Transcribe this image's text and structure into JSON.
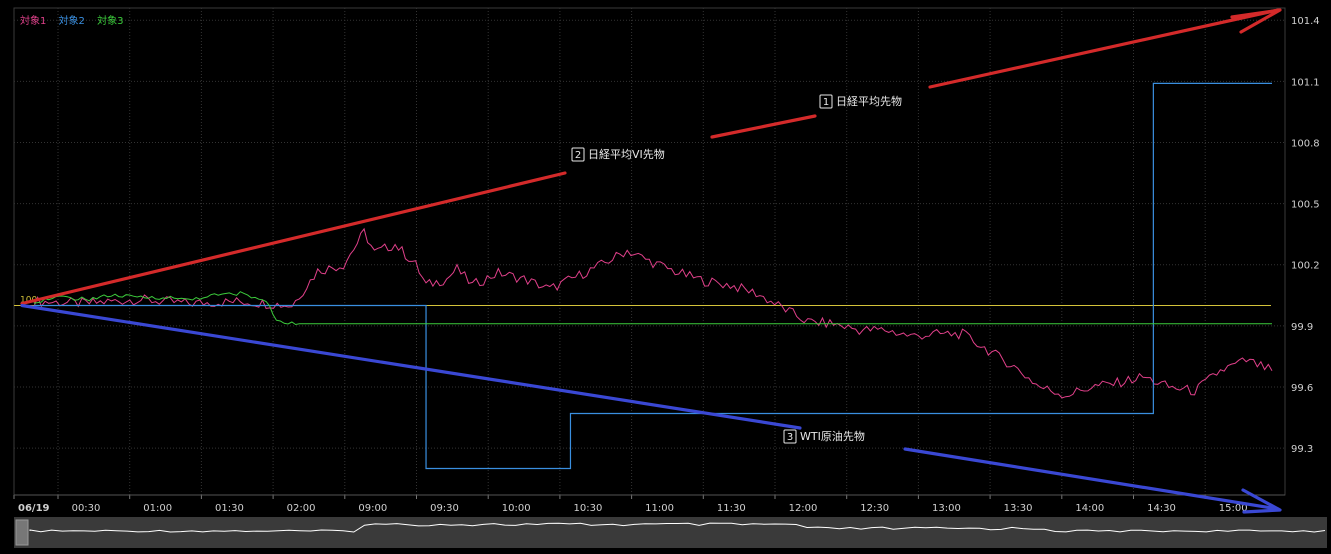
{
  "legend": [
    {
      "label": "対象1",
      "color": "#e0408a"
    },
    {
      "label": "対象2",
      "color": "#3a8fe0"
    },
    {
      "label": "対象3",
      "color": "#3ccc3c"
    }
  ],
  "baseline_label": "100",
  "colors": {
    "background": "#000000",
    "grid": "#333333",
    "axis_text": "#d0d0d0",
    "baseline": "#d4c23a",
    "arrow_red": "#d42a2a",
    "arrow_blue": "#3a48d4",
    "navigator_line": "#ffffff",
    "navigator_bg": "#3a3a3a"
  },
  "chart_data": {
    "type": "line",
    "title": "",
    "xlabel": "",
    "ylabel": "",
    "date_label": "06/19",
    "x_ticks": [
      "06/19",
      "00:30",
      "01:00",
      "01:30",
      "02:00",
      "09:00",
      "09:30",
      "10:00",
      "10:30",
      "11:00",
      "11:30",
      "12:00",
      "12:30",
      "13:00",
      "13:30",
      "14:00",
      "14:30",
      "15:00"
    ],
    "y_ticks": [
      "101.4",
      "101.1",
      "100.8",
      "100.5",
      "100.2",
      "99.9",
      "99.6",
      "99.3"
    ],
    "ylim": [
      99.07,
      101.46
    ],
    "grid": true,
    "y_axis_side": "right",
    "legend_placement": "top-left",
    "baseline": 100,
    "series": [
      {
        "name": "対象1",
        "color": "#e0408a",
        "points": [
          [
            0,
            100.02
          ],
          [
            1,
            100.01
          ],
          [
            2,
            100.03
          ],
          [
            3,
            100.01
          ],
          [
            4,
            100.02
          ],
          [
            5,
            100.0
          ],
          [
            5.5,
            100.17
          ],
          [
            6,
            100.2
          ],
          [
            6.4,
            100.36
          ],
          [
            6.6,
            100.26
          ],
          [
            7,
            100.3
          ],
          [
            7.4,
            100.2
          ],
          [
            7.6,
            100.1
          ],
          [
            8,
            100.13
          ],
          [
            8.2,
            100.18
          ],
          [
            8.5,
            100.1
          ],
          [
            9,
            100.16
          ],
          [
            9.5,
            100.13
          ],
          [
            10,
            100.08
          ],
          [
            10.5,
            100.14
          ],
          [
            11,
            100.2
          ],
          [
            11.5,
            100.27
          ],
          [
            12,
            100.21
          ],
          [
            12.5,
            100.16
          ],
          [
            13,
            100.12
          ],
          [
            13.5,
            100.1
          ],
          [
            14,
            100.06
          ],
          [
            14.5,
            99.99
          ],
          [
            15,
            99.92
          ],
          [
            15.5,
            99.91
          ],
          [
            16,
            99.88
          ],
          [
            16.5,
            99.88
          ],
          [
            17,
            99.85
          ],
          [
            17.5,
            99.86
          ],
          [
            18,
            99.86
          ],
          [
            18.5,
            99.78
          ],
          [
            19,
            99.7
          ],
          [
            19.5,
            99.6
          ],
          [
            20,
            99.56
          ],
          [
            20.5,
            99.6
          ],
          [
            21,
            99.62
          ],
          [
            21.5,
            99.65
          ],
          [
            22,
            99.6
          ],
          [
            22.5,
            99.58
          ],
          [
            23,
            99.68
          ],
          [
            23.5,
            99.73
          ],
          [
            24,
            99.68
          ]
        ]
      },
      {
        "name": "対象2",
        "color": "#3a8fe0",
        "points": [
          [
            0,
            100.0
          ],
          [
            7.6,
            100.0
          ],
          [
            7.6,
            99.2
          ],
          [
            10.4,
            99.2
          ],
          [
            10.4,
            99.47
          ],
          [
            21.7,
            99.47
          ],
          [
            21.7,
            101.09
          ],
          [
            24,
            101.09
          ]
        ]
      },
      {
        "name": "対象3",
        "color": "#3ccc3c",
        "points": [
          [
            0,
            100.02
          ],
          [
            0.5,
            100.04
          ],
          [
            1,
            100.03
          ],
          [
            1.5,
            100.05
          ],
          [
            2,
            100.04
          ],
          [
            2.5,
            100.04
          ],
          [
            3,
            100.03
          ],
          [
            3.5,
            100.05
          ],
          [
            4,
            100.06
          ],
          [
            4.5,
            100.02
          ],
          [
            4.7,
            99.93
          ],
          [
            5,
            99.91
          ],
          [
            24,
            99.91
          ]
        ]
      }
    ],
    "annotations": [
      {
        "num": "1",
        "text": "日経平均先物",
        "color": "#d42a2a",
        "direction": "up"
      },
      {
        "num": "2",
        "text": "日経平均VI先物",
        "color": "#d42a2a",
        "direction": "up"
      },
      {
        "num": "3",
        "text": "WTI原油先物",
        "color": "#3a48d4",
        "direction": "down"
      }
    ]
  }
}
